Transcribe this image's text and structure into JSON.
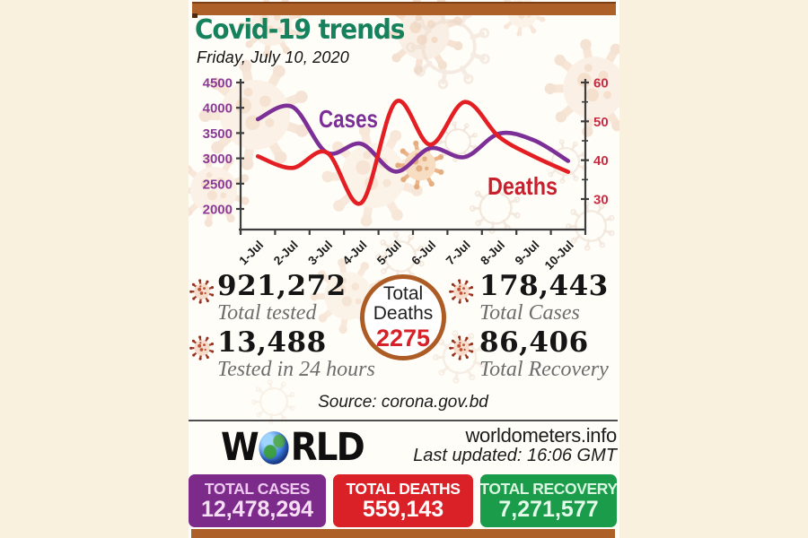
{
  "header": {
    "title": "Covid-19 trends",
    "date": "Friday, July 10, 2020"
  },
  "chart_data": {
    "type": "line",
    "categories": [
      "1-Jul",
      "2-Jul",
      "3-Jul",
      "4-Jul",
      "5-Jul",
      "6-Jul",
      "7-Jul",
      "8-Jul",
      "9-Jul",
      "10-Jul"
    ],
    "series": [
      {
        "name": "Cases",
        "axis": "left",
        "color": "#7c2f96",
        "label_color": "#7c2f96",
        "values": [
          3775,
          4019,
          3114,
          3288,
          2738,
          3201,
          3027,
          3489,
          3360,
          2949
        ]
      },
      {
        "name": "Deaths",
        "axis": "right",
        "color": "#e41f24",
        "label_color": "#c9202e",
        "values": [
          41,
          38,
          42,
          29,
          55,
          44,
          55,
          46,
          41,
          37
        ]
      }
    ],
    "left_axis": {
      "min": 2000,
      "max": 4500,
      "ticks": [
        4500,
        4000,
        3500,
        3000,
        2500,
        2000
      ],
      "color": "#8b3a96"
    },
    "right_axis": {
      "min": 30,
      "max": 60,
      "ticks": [
        60,
        50,
        40,
        30
      ],
      "minor_ticks": [
        55,
        45,
        35
      ],
      "color": "#c92b42"
    },
    "title": "Covid-19 trends",
    "xlabel": "",
    "ylabel": "",
    "grid": false,
    "legend": "inline-labels"
  },
  "stats": {
    "total_tested": {
      "value": "921,272",
      "label": "Total tested",
      "icon": "virus-icon"
    },
    "tested_24h": {
      "value": "13,488",
      "label": "Tested in 24 hours",
      "icon": "virus-icon"
    },
    "total_cases": {
      "value": "178,443",
      "label": "Total Cases",
      "icon": "virus-icon"
    },
    "total_recovery": {
      "value": "86,406",
      "label": "Total Recovery",
      "icon": "virus-icon"
    },
    "total_deaths": {
      "line1": "Total",
      "line2": "Deaths",
      "value": "2275"
    }
  },
  "footer": {
    "source": "Source: corona.gov.bd"
  },
  "worldometer": {
    "brand_w": "W",
    "brand_rest": "RLD",
    "globe_icon": "earth-globe-icon",
    "site": "worldometers.info",
    "last_updated": "Last updated: 16:06 GMT",
    "boxes": [
      {
        "label": "TOTAL CASES",
        "value": "12,478,294",
        "color": "#7d2b8b"
      },
      {
        "label": "TOTAL DEATHS",
        "value": "559,143",
        "color": "#da2127"
      },
      {
        "label": "TOTAL RECOVERY",
        "value": "7,271,577",
        "color": "#1a9c4b"
      }
    ]
  },
  "colors": {
    "accent_brown": "#ae6029",
    "title_green": "#16825d",
    "background_cream": "#f9f1dd",
    "deaths_value_red": "#d62128"
  }
}
